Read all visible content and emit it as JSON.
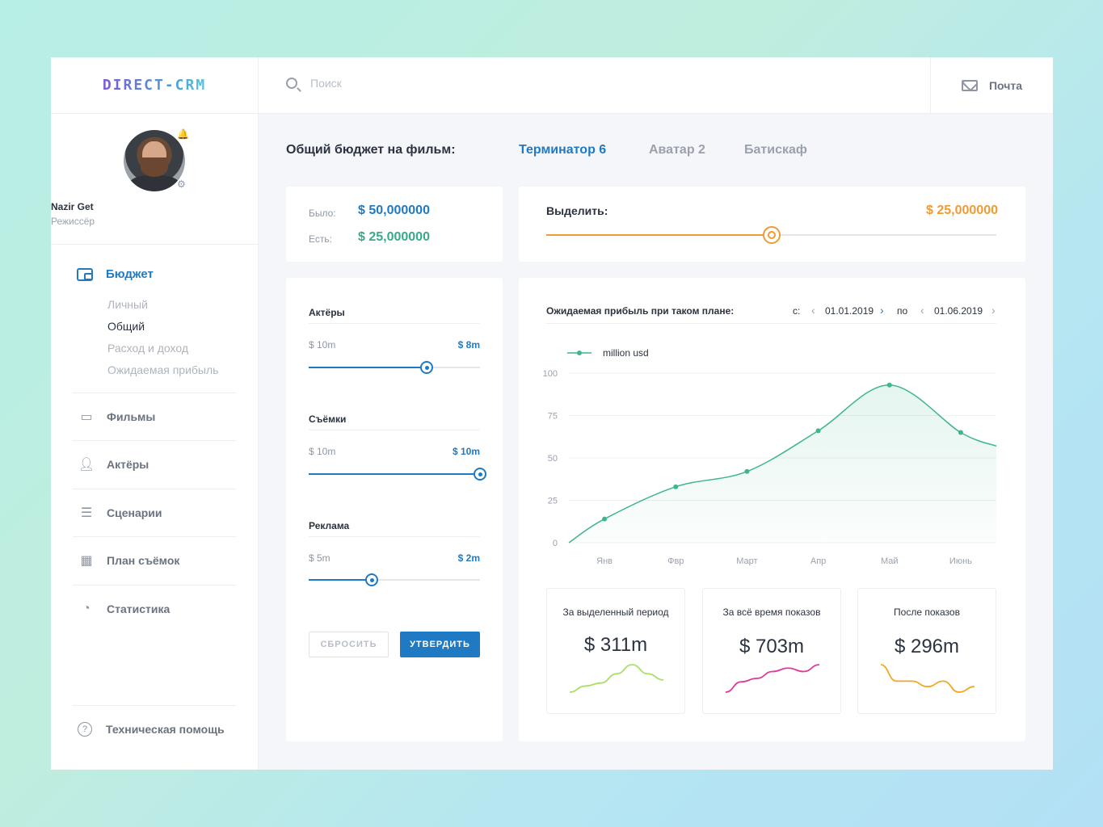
{
  "app": {
    "logo": "DIRECT-CRM"
  },
  "search": {
    "placeholder": "Поиск"
  },
  "mail": {
    "label": "Почта"
  },
  "profile": {
    "name": "Nazir Get",
    "role": "Режиссёр"
  },
  "nav": {
    "budget": "Бюджет",
    "sub": [
      "Личный",
      "Общий",
      "Расход и доход",
      "Ожидаемая прибыль"
    ],
    "items": [
      "Фильмы",
      "Актёры",
      "Сценарии",
      "План съёмок",
      "Статистика"
    ],
    "help": "Техническая помощь"
  },
  "header": {
    "title": "Общий бюджет на фильм:",
    "tabs": [
      "Терминатор 6",
      "Аватар 2",
      "Батискаф"
    ]
  },
  "budget": {
    "was_label": "Было:",
    "was_value": "$ 50,000000",
    "now_label": "Есть:",
    "now_value": "$ 25,000000"
  },
  "allocate": {
    "label": "Выделить:",
    "value": "$ 25,000000",
    "fraction": 0.5
  },
  "categories": [
    {
      "title": "Актёры",
      "min": "$ 10m",
      "value": "$ 8m",
      "fraction": 0.69
    },
    {
      "title": "Съёмки",
      "min": "$ 10m",
      "value": "$ 10m",
      "fraction": 1.0
    },
    {
      "title": "Реклама",
      "min": "$ 5m",
      "value": "$ 2m",
      "fraction": 0.37
    }
  ],
  "buttons": {
    "reset": "СБРОСИТЬ",
    "confirm": "УТВЕРДИТЬ"
  },
  "chart_header": {
    "title": "Ожидаемая прибыль при таком плане:",
    "from_label": "с:",
    "from_date": "01.01.2019",
    "to_label": "по",
    "to_date": "01.06.2019"
  },
  "chart_data": {
    "type": "area",
    "title": "Ожидаемая прибыль при таком плане:",
    "legend": "million usd",
    "categories": [
      "Янв",
      "Фвр",
      "Март",
      "Апр",
      "Май",
      "Июнь"
    ],
    "x": [
      0,
      0.5,
      1.5,
      2.5,
      3.5,
      4.5,
      5.5,
      6
    ],
    "values": [
      0,
      14,
      33,
      42,
      66,
      93,
      65,
      57
    ],
    "yticks": [
      0,
      25,
      50,
      75,
      100
    ],
    "ylim": [
      0,
      100
    ],
    "color": "#3fb68b"
  },
  "stats": [
    {
      "title": "За выделенный период",
      "value": "$ 311m",
      "color": "#a8e063",
      "spark": [
        2,
        4,
        5,
        8,
        11,
        8,
        6
      ]
    },
    {
      "title": "За всё время показов",
      "value": "$ 703m",
      "color": "#e0399d",
      "spark": [
        1,
        4,
        5,
        7,
        8,
        7,
        9
      ]
    },
    {
      "title": "После показов",
      "value": "$ 296m",
      "color": "#f5a623",
      "spark": [
        8,
        5,
        5,
        4,
        5,
        3,
        4
      ]
    }
  ]
}
